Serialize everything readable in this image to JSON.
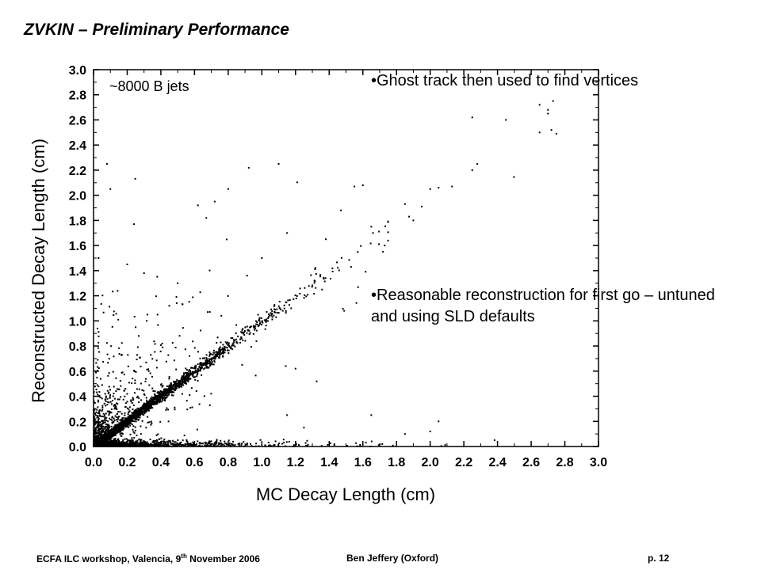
{
  "slide": {
    "title": "ZVKIN – Preliminary Performance",
    "bullets": [
      "•Ghost track then used to find vertices",
      "•Reasonable reconstruction for first go – untuned and using SLD defaults"
    ],
    "footer": {
      "event_text": "ECFA ILC workshop, Valencia, 9",
      "event_sup": "th",
      "event_date": " November  2006",
      "author": "Ben Jeffery (Oxford)",
      "page": "p. 12"
    }
  },
  "chart_data": {
    "type": "scatter",
    "xlabel": "MC Decay Length (cm)",
    "ylabel": "Reconstructed Decay Length (cm)",
    "annotation": "~8000 B jets",
    "xlim": [
      0,
      3.0
    ],
    "ylim": [
      0,
      3.0
    ],
    "x_ticks": [
      "0.0",
      "0.2",
      "0.4",
      "0.6",
      "0.8",
      "1.0",
      "1.2",
      "1.4",
      "1.6",
      "1.8",
      "2.0",
      "2.2",
      "2.4",
      "2.6",
      "2.8",
      "3.0"
    ],
    "y_ticks": [
      "0.0",
      "0.2",
      "0.4",
      "0.6",
      "0.8",
      "1.0",
      "1.2",
      "1.4",
      "1.6",
      "1.8",
      "2.0",
      "2.2",
      "2.4",
      "2.6",
      "2.8",
      "3.0"
    ],
    "point_color": "#000000",
    "grid": false,
    "points_description": "dense diagonal band x≈y from 0 to ~1.7 cm, horizontal band near y≈0, sparse outliers",
    "outliers": [
      [
        0.08,
        2.25
      ],
      [
        0.1,
        2.05
      ],
      [
        0.03,
        1.5
      ],
      [
        0.3,
        1.38
      ],
      [
        0.32,
        1.05
      ],
      [
        0.24,
        1.77
      ],
      [
        0.62,
        1.92
      ],
      [
        0.72,
        1.95
      ],
      [
        0.8,
        2.05
      ],
      [
        1.1,
        2.25
      ],
      [
        0.67,
        1.82
      ],
      [
        1.53,
        1.43
      ],
      [
        1.38,
        1.65
      ],
      [
        1.47,
        1.88
      ],
      [
        1.55,
        2.07
      ],
      [
        1.6,
        2.08
      ],
      [
        1.85,
        1.93
      ],
      [
        1.9,
        1.8
      ],
      [
        1.95,
        1.91
      ],
      [
        2.0,
        2.05
      ],
      [
        2.05,
        2.06
      ],
      [
        2.13,
        2.07
      ],
      [
        2.25,
        2.2
      ],
      [
        2.28,
        2.25
      ],
      [
        2.25,
        2.62
      ],
      [
        2.45,
        2.6
      ],
      [
        2.65,
        2.72
      ],
      [
        2.7,
        2.65
      ],
      [
        2.73,
        2.75
      ],
      [
        2.65,
        2.5
      ],
      [
        2.72,
        2.52
      ],
      [
        2.75,
        2.49
      ],
      [
        2.7,
        2.68
      ],
      [
        1.66,
        1.7
      ],
      [
        1.65,
        1.75
      ],
      [
        1.72,
        1.55
      ],
      [
        1.73,
        1.6
      ],
      [
        1.2,
        0.62
      ],
      [
        1.15,
        0.25
      ],
      [
        1.25,
        0.15
      ],
      [
        2.05,
        0.2
      ],
      [
        1.65,
        0.25
      ],
      [
        1.85,
        0.1
      ],
      [
        2.0,
        0.12
      ],
      [
        0.5,
        1.3
      ],
      [
        0.38,
        1.05
      ],
      [
        0.25,
        0.95
      ],
      [
        0.45,
        1.12
      ],
      [
        0.2,
        1.45
      ],
      [
        1.15,
        1.7
      ],
      [
        1.0,
        1.5
      ]
    ]
  }
}
